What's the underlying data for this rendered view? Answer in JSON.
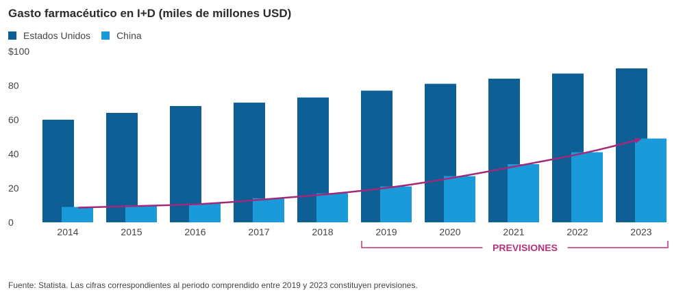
{
  "chart_data": {
    "type": "bar",
    "title": "Gasto farmacéutico en I+D (miles de millones USD)",
    "xlabel": "",
    "ylabel": "",
    "ylim": [
      0,
      100
    ],
    "yticks": [
      0,
      20,
      40,
      60,
      80,
      100
    ],
    "ytick_labels": [
      "0",
      "20",
      "40",
      "60",
      "80",
      "$100"
    ],
    "categories": [
      "2014",
      "2015",
      "2016",
      "2017",
      "2018",
      "2019",
      "2020",
      "2021",
      "2022",
      "2023"
    ],
    "series": [
      {
        "name": "Estados Unidos",
        "color": "#0d5f96",
        "values": [
          60,
          64,
          68,
          70,
          73,
          77,
          81,
          84,
          87,
          90
        ]
      },
      {
        "name": "China",
        "color": "#1a9ad8",
        "values": [
          9,
          10,
          11,
          14,
          17,
          21,
          27,
          34,
          41,
          49
        ]
      }
    ],
    "trend_arrow": {
      "series": "China",
      "color": "#a3287a",
      "from": "2014",
      "to": "2023"
    },
    "forecast_bracket": {
      "label": "PREVISIONES",
      "from": "2019",
      "to": "2023",
      "color": "#b8307e"
    },
    "legend_position": "top-left",
    "grid": false
  },
  "source_note": "Fuente: Statista. Las cifras correspondientes al periodo comprendido entre 2019 y 2023 constituyen previsiones."
}
